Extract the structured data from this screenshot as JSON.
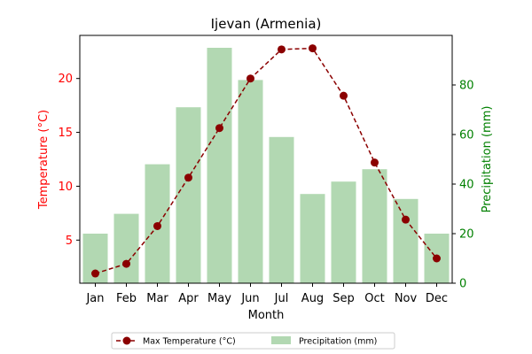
{
  "chart_data": {
    "type": "bar",
    "title": "Ijevan (Armenia)",
    "xlabel": "Month",
    "ylabel_left": "Temperature (°C)",
    "ylabel_right": "Precipitation (mm)",
    "categories": [
      "Jan",
      "Feb",
      "Mar",
      "Apr",
      "May",
      "Jun",
      "Jul",
      "Aug",
      "Sep",
      "Oct",
      "Nov",
      "Dec"
    ],
    "series": [
      {
        "name": "Max Temperature (°C)",
        "kind": "line",
        "axis": "left",
        "color": "#8b0000",
        "values": [
          1.9,
          2.8,
          6.3,
          10.8,
          15.4,
          20.0,
          22.7,
          22.8,
          18.4,
          12.2,
          6.9,
          3.3
        ]
      },
      {
        "name": "Precipitation (mm)",
        "kind": "bar",
        "axis": "right",
        "color": "#b2d8b2",
        "values": [
          20,
          28,
          48,
          71,
          95,
          82,
          59,
          36,
          41,
          46,
          34,
          20
        ]
      }
    ],
    "ylim_left": [
      1.0,
      24.0
    ],
    "yticks_left": [
      5,
      10,
      15,
      20
    ],
    "ylim_right": [
      0,
      100
    ],
    "yticks_right": [
      0,
      20,
      40,
      60,
      80
    ],
    "left_axis_color": "#ff0000",
    "right_axis_color": "#008000",
    "grid": false,
    "legend_position": "bottom-center"
  }
}
